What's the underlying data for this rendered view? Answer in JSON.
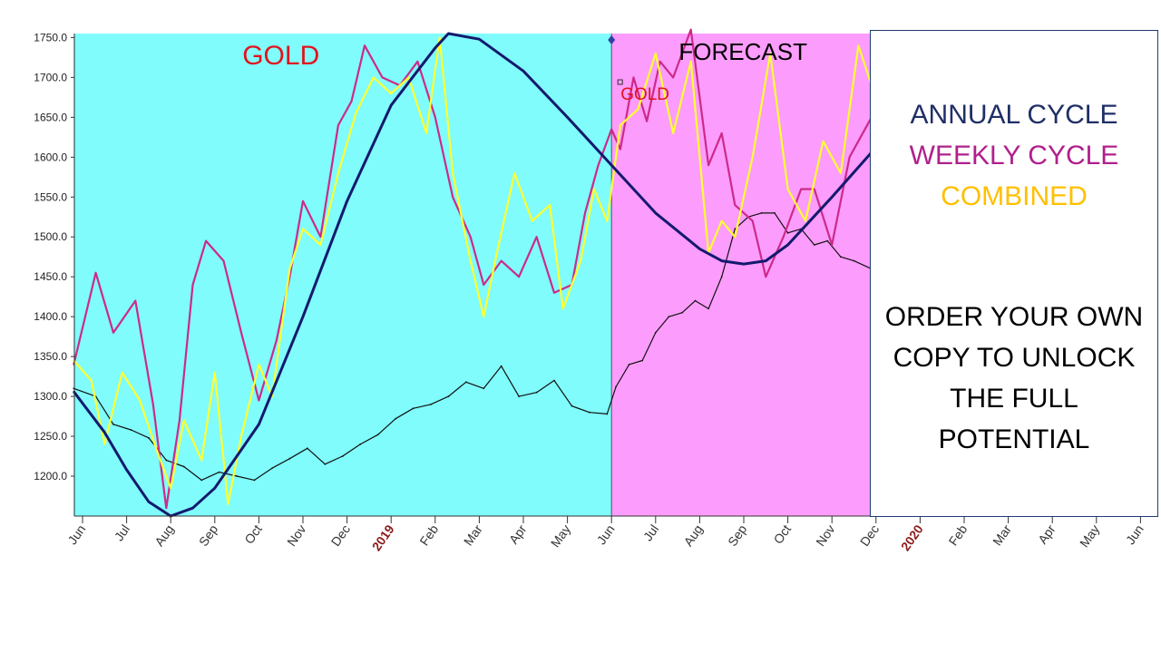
{
  "chart_data": {
    "type": "line",
    "title": "",
    "region_labels": {
      "history": "GOLD",
      "forecast": "FORECAST",
      "ticker_marker": "GOLD"
    },
    "xlabel": "",
    "ylabel": "",
    "ylim": [
      1150,
      1755
    ],
    "y_ticks": [
      "1750.0",
      "1700.0",
      "1650.0",
      "1600.0",
      "1550.0",
      "1500.0",
      "1450.0",
      "1400.0",
      "1350.0",
      "1300.0",
      "1250.0",
      "1200.0"
    ],
    "x_ticks": [
      {
        "label": "Jun"
      },
      {
        "label": "Jul"
      },
      {
        "label": "Aug"
      },
      {
        "label": "Sep"
      },
      {
        "label": "Oct"
      },
      {
        "label": "Nov"
      },
      {
        "label": "Dec"
      },
      {
        "label": "2019",
        "year": true
      },
      {
        "label": "Feb"
      },
      {
        "label": "Mar"
      },
      {
        "label": "Apr"
      },
      {
        "label": "May"
      },
      {
        "label": "Jun"
      },
      {
        "label": "Jul"
      },
      {
        "label": "Aug"
      },
      {
        "label": "Sep"
      },
      {
        "label": "Oct"
      },
      {
        "label": "Nov"
      },
      {
        "label": "Dec"
      },
      {
        "label": "2020",
        "year": true
      },
      {
        "label": "Feb"
      },
      {
        "label": "Mar"
      },
      {
        "label": "Apr"
      },
      {
        "label": "May"
      },
      {
        "label": "Jun"
      }
    ],
    "x_unit": "months since Jun 2018",
    "xlim": [
      -0.2,
      24.2
    ],
    "history_range": [
      -0.2,
      12.0
    ],
    "forecast_range": [
      12.0,
      17.9
    ],
    "series": [
      {
        "name": "ANNUAL CYCLE",
        "color": "#141a6e",
        "x": [
          -0.2,
          0.5,
          1,
          1.5,
          2,
          2.5,
          3,
          4,
          5,
          6,
          7,
          8,
          8.3,
          9,
          10,
          11,
          12,
          13,
          14,
          14.5,
          15,
          15.5,
          16,
          17,
          17.9
        ],
        "y": [
          1306,
          1255,
          1208,
          1168,
          1150,
          1160,
          1185,
          1265,
          1400,
          1545,
          1665,
          1737,
          1755,
          1748,
          1708,
          1650,
          1590,
          1530,
          1485,
          1470,
          1466,
          1470,
          1490,
          1550,
          1606
        ]
      },
      {
        "name": "WEEKLY CYCLE",
        "color": "#cc2a8a",
        "x": [
          -0.2,
          0.3,
          0.7,
          1.2,
          1.6,
          1.9,
          2.2,
          2.5,
          2.8,
          3.2,
          3.6,
          4,
          4.4,
          4.7,
          5,
          5.4,
          5.8,
          6.1,
          6.4,
          6.8,
          7.2,
          7.6,
          8,
          8.4,
          8.8,
          9.1,
          9.5,
          9.9,
          10.3,
          10.7,
          11.1,
          11.4,
          11.7,
          12,
          12.2,
          12.5,
          12.8,
          13.1,
          13.4,
          13.8,
          14.2,
          14.5,
          14.8,
          15.2,
          15.5,
          15.9,
          16.3,
          16.6,
          17,
          17.4,
          17.9
        ],
        "y": [
          1340,
          1455,
          1380,
          1420,
          1290,
          1160,
          1270,
          1440,
          1495,
          1470,
          1380,
          1295,
          1370,
          1450,
          1545,
          1500,
          1640,
          1670,
          1740,
          1700,
          1690,
          1720,
          1650,
          1550,
          1500,
          1440,
          1470,
          1450,
          1500,
          1430,
          1440,
          1530,
          1590,
          1635,
          1610,
          1700,
          1645,
          1720,
          1700,
          1760,
          1590,
          1630,
          1540,
          1520,
          1450,
          1500,
          1560,
          1560,
          1490,
          1600,
          1650
        ]
      },
      {
        "name": "COMBINED",
        "color": "#ffff33",
        "x": [
          -0.2,
          0.2,
          0.5,
          0.9,
          1.3,
          1.7,
          2.0,
          2.3,
          2.7,
          3.0,
          3.3,
          3.6,
          4.0,
          4.3,
          4.7,
          5.0,
          5.4,
          5.8,
          6.2,
          6.6,
          7.0,
          7.4,
          7.8,
          8.1,
          8.4,
          8.8,
          9.1,
          9.4,
          9.8,
          10.2,
          10.6,
          10.9,
          11.3,
          11.6,
          11.9,
          12.2,
          12.6,
          13.0,
          13.4,
          13.8,
          14.2,
          14.5,
          14.8,
          15.2,
          15.6,
          16.0,
          16.4,
          16.8,
          17.2,
          17.6,
          17.9
        ],
        "y": [
          1345,
          1320,
          1240,
          1330,
          1295,
          1230,
          1185,
          1270,
          1220,
          1330,
          1165,
          1250,
          1340,
          1300,
          1460,
          1510,
          1490,
          1580,
          1655,
          1700,
          1680,
          1700,
          1630,
          1750,
          1580,
          1470,
          1400,
          1480,
          1580,
          1520,
          1540,
          1410,
          1470,
          1560,
          1520,
          1640,
          1660,
          1730,
          1630,
          1720,
          1480,
          1520,
          1500,
          1600,
          1730,
          1560,
          1520,
          1620,
          1580,
          1740,
          1690
        ]
      },
      {
        "name": "GOLD price",
        "color": "#111111",
        "x": [
          -0.2,
          0.3,
          0.7,
          1.1,
          1.5,
          1.9,
          2.3,
          2.7,
          3.1,
          3.5,
          3.9,
          4.3,
          4.7,
          5.1,
          5.5,
          5.9,
          6.3,
          6.7,
          7.1,
          7.5,
          7.9,
          8.3,
          8.7,
          9.1,
          9.5,
          9.9,
          10.3,
          10.7,
          11.1,
          11.5,
          11.9,
          12.1,
          12.4,
          12.7,
          13.0,
          13.3,
          13.6,
          13.9,
          14.2,
          14.5,
          14.8,
          15.1,
          15.4,
          15.7,
          16.0,
          16.3,
          16.6,
          16.9,
          17.2,
          17.5,
          17.9
        ],
        "y": [
          1310,
          1300,
          1265,
          1258,
          1248,
          1220,
          1212,
          1195,
          1205,
          1200,
          1195,
          1210,
          1222,
          1235,
          1215,
          1225,
          1240,
          1252,
          1272,
          1285,
          1290,
          1300,
          1318,
          1310,
          1338,
          1300,
          1305,
          1320,
          1288,
          1280,
          1278,
          1312,
          1340,
          1345,
          1380,
          1400,
          1405,
          1420,
          1410,
          1450,
          1510,
          1525,
          1530,
          1530,
          1505,
          1510,
          1490,
          1495,
          1475,
          1470,
          1460
        ]
      }
    ]
  },
  "legend": {
    "items": [
      {
        "label": "ANNUAL CYCLE",
        "color": "#1f2f66"
      },
      {
        "label": "WEEKLY CYCLE",
        "color": "#b0208c"
      },
      {
        "label": "COMBINED",
        "color": "#ffc000"
      }
    ]
  },
  "promo": {
    "lines": [
      "ORDER YOUR OWN",
      "COPY TO UNLOCK",
      "THE FULL",
      "POTENTIAL"
    ]
  },
  "colors": {
    "history_bg": "#80fcfc",
    "forecast_bg": "#fc9cfc",
    "history_label": "#e0141e",
    "forecast_label": "#000000",
    "ticker_label": "#e0141e"
  }
}
